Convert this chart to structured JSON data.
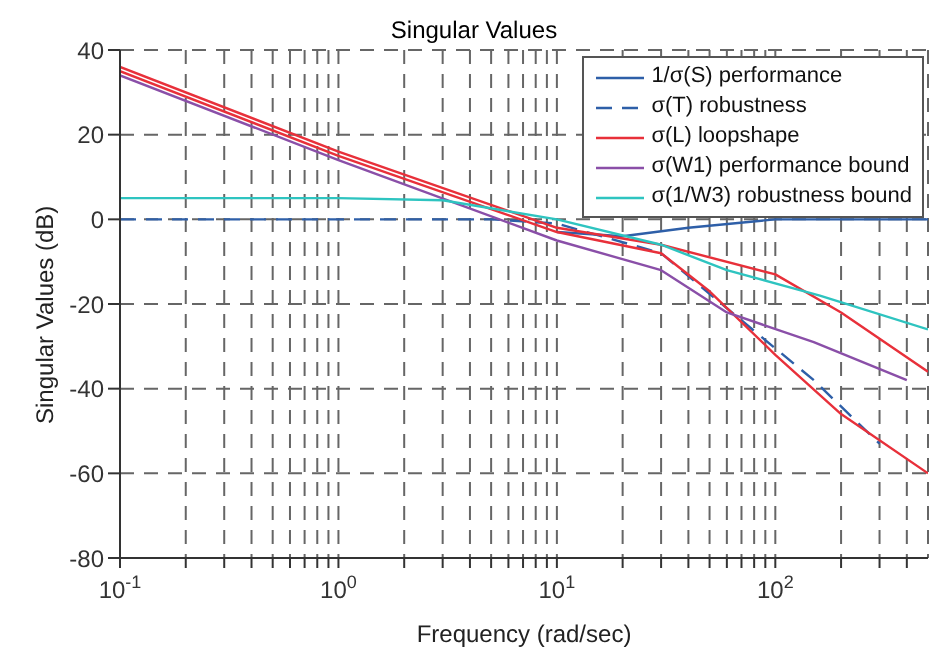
{
  "chart_data": {
    "type": "line",
    "title": "Singular Values",
    "xlabel": "Frequency (rad/sec)",
    "ylabel": "Singular Values (dB)",
    "log": "x",
    "grid": true,
    "legend": "top right",
    "xlim": [
      0.1,
      500
    ],
    "ylim": [
      -80,
      40
    ],
    "xticks": [
      {
        "value": 0.1,
        "label": "10$^{-1}$"
      },
      {
        "value": 0.2,
        "label": null
      },
      {
        "value": 0.3,
        "label": null
      },
      {
        "value": 0.4,
        "label": null
      },
      {
        "value": 0.5,
        "label": null
      },
      {
        "value": 0.6,
        "label": null
      },
      {
        "value": 0.7,
        "label": null
      },
      {
        "value": 0.8,
        "label": null
      },
      {
        "value": 0.9,
        "label": null
      },
      {
        "value": 1,
        "label": "10$^{0}$"
      },
      {
        "value": 2,
        "label": null
      },
      {
        "value": 3,
        "label": null
      },
      {
        "value": 4,
        "label": null
      },
      {
        "value": 5,
        "label": null
      },
      {
        "value": 6,
        "label": null
      },
      {
        "value": 7,
        "label": null
      },
      {
        "value": 8,
        "label": null
      },
      {
        "value": 9,
        "label": null
      },
      {
        "value": 10,
        "label": "10$^{1}$"
      },
      {
        "value": 20,
        "label": null
      },
      {
        "value": 30,
        "label": null
      },
      {
        "value": 40,
        "label": null
      },
      {
        "value": 50,
        "label": null
      },
      {
        "value": 60,
        "label": null
      },
      {
        "value": 70,
        "label": null
      },
      {
        "value": 80,
        "label": null
      },
      {
        "value": 90,
        "label": null
      },
      {
        "value": 100,
        "label": "10$^{2}$"
      },
      {
        "value": 200,
        "label": null
      },
      {
        "value": 300,
        "label": null
      },
      {
        "value": 400,
        "label": null
      }
    ],
    "yticks": [
      -80,
      -60,
      -40,
      -20,
      0,
      20,
      40
    ],
    "series": [
      {
        "name": "1/σ(S) performance",
        "color": "#2e5fa8",
        "line_style": "solid",
        "x": [
          10,
          20,
          40,
          100,
          500
        ],
        "values": [
          -3,
          -4,
          -2,
          0,
          0
        ]
      },
      {
        "name": "σ(T) robustness",
        "color": "#2e5fa8",
        "line_style": "dashed",
        "x": [
          0.1,
          5,
          10,
          30,
          60,
          150,
          300
        ],
        "values": [
          0,
          0,
          -1,
          -8,
          -21,
          -38,
          -53
        ]
      },
      {
        "name": "σ(L) loopshape",
        "color": "#e8303a",
        "line_style": "solid",
        "x": [
          0.1,
          1,
          10,
          30,
          100,
          200,
          500
        ],
        "values": [
          36,
          16,
          -2,
          -6,
          -13,
          -22,
          -36
        ]
      },
      {
        "color": "#e8303a",
        "line_style": "solid",
        "x": [
          0.1,
          1,
          10,
          30,
          50,
          100,
          200,
          500
        ],
        "values": [
          35,
          15,
          -3,
          -8,
          -17,
          -32,
          -46,
          -60
        ]
      },
      {
        "name": "σ(W1) performance bound",
        "color": "#8a4fa8",
        "line_style": "solid",
        "x": [
          0.1,
          1,
          10,
          30,
          60,
          150,
          400
        ],
        "values": [
          34,
          14,
          -5,
          -12,
          -22,
          -29,
          -38
        ]
      },
      {
        "name": "σ(1/W3) robustness bound",
        "color": "#2ec4c0",
        "line_style": "solid",
        "x": [
          0.1,
          1,
          3,
          10,
          30,
          60,
          160,
          500
        ],
        "values": [
          5,
          5,
          4.5,
          0,
          -6,
          -12,
          -18,
          -26
        ]
      }
    ]
  }
}
